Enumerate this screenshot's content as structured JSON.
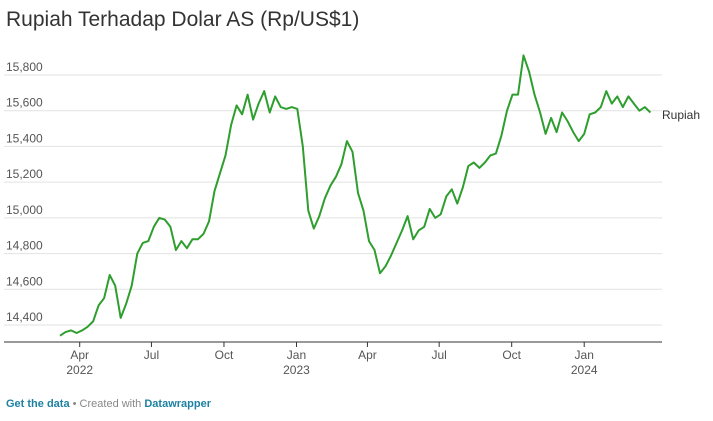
{
  "chart_data": {
    "type": "line",
    "title": "Rupiah Terhadap Dolar AS (Rp/US$1)",
    "xlabel": "",
    "ylabel": "",
    "x_range": [
      "2022-03-07",
      "2024-03-27"
    ],
    "ylim": [
      14300,
      15900
    ],
    "yticks": [
      14400,
      14600,
      14800,
      15000,
      15200,
      15400,
      15600,
      15800
    ],
    "ytick_labels": [
      "14,400",
      "14,600",
      "14,800",
      "15,000",
      "15,200",
      "15,400",
      "15,600",
      "15,800"
    ],
    "xticks": [
      {
        "date": "2022-04-01",
        "label": "Apr",
        "sub": "2022"
      },
      {
        "date": "2022-07-01",
        "label": "Jul",
        "sub": ""
      },
      {
        "date": "2022-10-01",
        "label": "Oct",
        "sub": ""
      },
      {
        "date": "2023-01-01",
        "label": "Jan",
        "sub": "2023"
      },
      {
        "date": "2023-04-01",
        "label": "Apr",
        "sub": ""
      },
      {
        "date": "2023-07-01",
        "label": "Jul",
        "sub": ""
      },
      {
        "date": "2023-10-01",
        "label": "Oct",
        "sub": ""
      },
      {
        "date": "2024-01-01",
        "label": "Jan",
        "sub": "2024"
      }
    ],
    "grid": true,
    "color": "#2e9e2e",
    "series": [
      {
        "name": "Rupiah",
        "x": [
          "2022-03-07",
          "2022-03-14",
          "2022-03-21",
          "2022-03-28",
          "2022-04-04",
          "2022-04-11",
          "2022-04-18",
          "2022-04-25",
          "2022-05-02",
          "2022-05-09",
          "2022-05-16",
          "2022-05-23",
          "2022-05-30",
          "2022-06-06",
          "2022-06-13",
          "2022-06-20",
          "2022-06-27",
          "2022-07-04",
          "2022-07-11",
          "2022-07-18",
          "2022-07-25",
          "2022-08-01",
          "2022-08-08",
          "2022-08-15",
          "2022-08-22",
          "2022-08-29",
          "2022-09-05",
          "2022-09-12",
          "2022-09-19",
          "2022-09-26",
          "2022-10-03",
          "2022-10-10",
          "2022-10-17",
          "2022-10-24",
          "2022-10-31",
          "2022-11-07",
          "2022-11-14",
          "2022-11-21",
          "2022-11-28",
          "2022-12-05",
          "2022-12-12",
          "2022-12-19",
          "2022-12-26",
          "2023-01-02",
          "2023-01-09",
          "2023-01-16",
          "2023-01-23",
          "2023-01-30",
          "2023-02-06",
          "2023-02-13",
          "2023-02-20",
          "2023-02-27",
          "2023-03-06",
          "2023-03-13",
          "2023-03-20",
          "2023-03-27",
          "2023-04-03",
          "2023-04-10",
          "2023-04-17",
          "2023-04-24",
          "2023-05-01",
          "2023-05-08",
          "2023-05-15",
          "2023-05-22",
          "2023-05-29",
          "2023-06-05",
          "2023-06-12",
          "2023-06-19",
          "2023-06-26",
          "2023-07-03",
          "2023-07-10",
          "2023-07-17",
          "2023-07-24",
          "2023-07-31",
          "2023-08-07",
          "2023-08-14",
          "2023-08-21",
          "2023-08-28",
          "2023-09-04",
          "2023-09-11",
          "2023-09-18",
          "2023-09-25",
          "2023-10-02",
          "2023-10-09",
          "2023-10-16",
          "2023-10-23",
          "2023-10-30",
          "2023-11-06",
          "2023-11-13",
          "2023-11-20",
          "2023-11-27",
          "2023-12-04",
          "2023-12-11",
          "2023-12-18",
          "2023-12-25",
          "2024-01-01",
          "2024-01-08",
          "2024-01-15",
          "2024-01-22",
          "2024-01-29",
          "2024-02-05",
          "2024-02-12",
          "2024-02-19",
          "2024-02-26",
          "2024-03-04",
          "2024-03-11",
          "2024-03-18",
          "2024-03-25"
        ],
        "y": [
          14340,
          14360,
          14370,
          14355,
          14370,
          14390,
          14420,
          14510,
          14550,
          14680,
          14620,
          14440,
          14520,
          14620,
          14800,
          14860,
          14870,
          14950,
          15000,
          14990,
          14950,
          14820,
          14870,
          14830,
          14880,
          14880,
          14910,
          14980,
          15150,
          15250,
          15350,
          15520,
          15630,
          15580,
          15690,
          15550,
          15640,
          15710,
          15590,
          15680,
          15620,
          15610,
          15620,
          15610,
          15400,
          15040,
          14940,
          15010,
          15110,
          15180,
          15230,
          15300,
          15430,
          15370,
          15140,
          15040,
          14870,
          14820,
          14690,
          14730,
          14790,
          14860,
          14930,
          15010,
          14880,
          14930,
          14950,
          15050,
          15000,
          15020,
          15120,
          15160,
          15080,
          15170,
          15290,
          15310,
          15280,
          15310,
          15350,
          15360,
          15460,
          15600,
          15690,
          15690,
          15910,
          15820,
          15690,
          15590,
          15470,
          15560,
          15480,
          15590,
          15540,
          15480,
          15430,
          15470,
          15580,
          15590,
          15620,
          15710,
          15640,
          15680,
          15620,
          15680,
          15640,
          15600,
          15620,
          15590
        ]
      }
    ]
  },
  "series_label": "Rupiah",
  "footer": {
    "get_data": "Get the data",
    "separator": " • ",
    "created_with": "Created with ",
    "tool": "Datawrapper"
  }
}
